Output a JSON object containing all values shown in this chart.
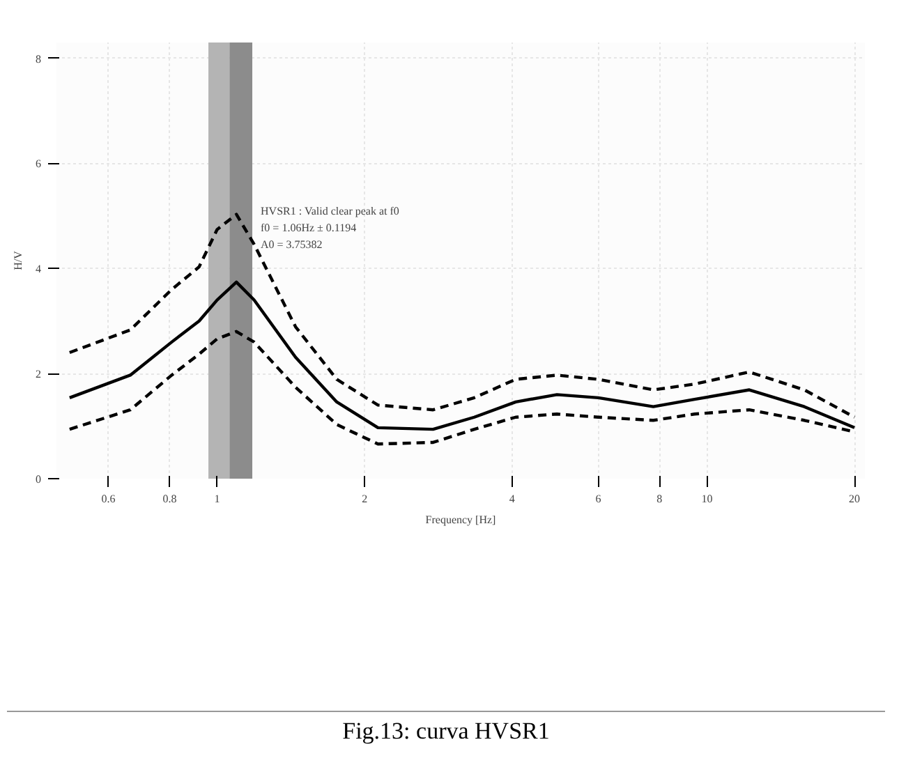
{
  "chart_data": {
    "type": "line",
    "xlabel": "Frequency [Hz]",
    "ylabel": "H/V",
    "log": "x",
    "grid": true,
    "marker": "none",
    "x": [
      0.5,
      0.665,
      0.808,
      0.919,
      1,
      1.095,
      1.19,
      1.446,
      1.755,
      2.13,
      2.76,
      3.35,
      4.07,
      4.94,
      6.0,
      7.77,
      9.43,
      12.2,
      15.8,
      20
    ],
    "series": [
      {
        "color": "#000000",
        "line_style": "solid",
        "values": [
          1.54,
          1.97,
          2.6,
          3.0,
          3.4,
          3.74,
          3.4,
          2.31,
          1.46,
          0.97,
          0.94,
          1.17,
          1.46,
          1.6,
          1.54,
          1.37,
          1.51,
          1.69,
          1.37,
          0.97
        ]
      },
      {
        "color": "#000000",
        "line_style": "dashed",
        "values": [
          2.4,
          2.83,
          3.6,
          4.03,
          4.74,
          5.03,
          4.46,
          2.89,
          1.89,
          1.4,
          1.31,
          1.54,
          1.89,
          1.97,
          1.89,
          1.69,
          1.8,
          2.03,
          1.69,
          1.17
        ]
      },
      {
        "color": "#000000",
        "line_style": "dashed",
        "values": [
          0.94,
          1.31,
          1.97,
          2.37,
          2.66,
          2.8,
          2.6,
          1.74,
          1.03,
          0.66,
          0.69,
          0.94,
          1.17,
          1.23,
          1.17,
          1.11,
          1.23,
          1.31,
          1.11,
          0.89
        ]
      }
    ],
    "bands": [
      {
        "axis": "x",
        "from": 0.96,
        "to": 1.06,
        "color": "#b4b4b4"
      },
      {
        "axis": "x",
        "from": 1.06,
        "to": 1.18,
        "color": "#8c8c8c"
      }
    ],
    "xlim": [
      0.47,
      21
    ],
    "ylim": [
      0,
      8.3
    ],
    "xticks": [
      0.6,
      0.8,
      1,
      2,
      4,
      6,
      8,
      10,
      20
    ],
    "yticks": [
      0,
      2,
      4,
      6,
      8
    ],
    "annotations": [
      "HVSR1 : Valid clear peak at f0",
      "f0 = 1.06Hz ± 0.1194",
      "A0 = 3.75382",
      "Fig.13: curva HVSR1"
    ]
  }
}
